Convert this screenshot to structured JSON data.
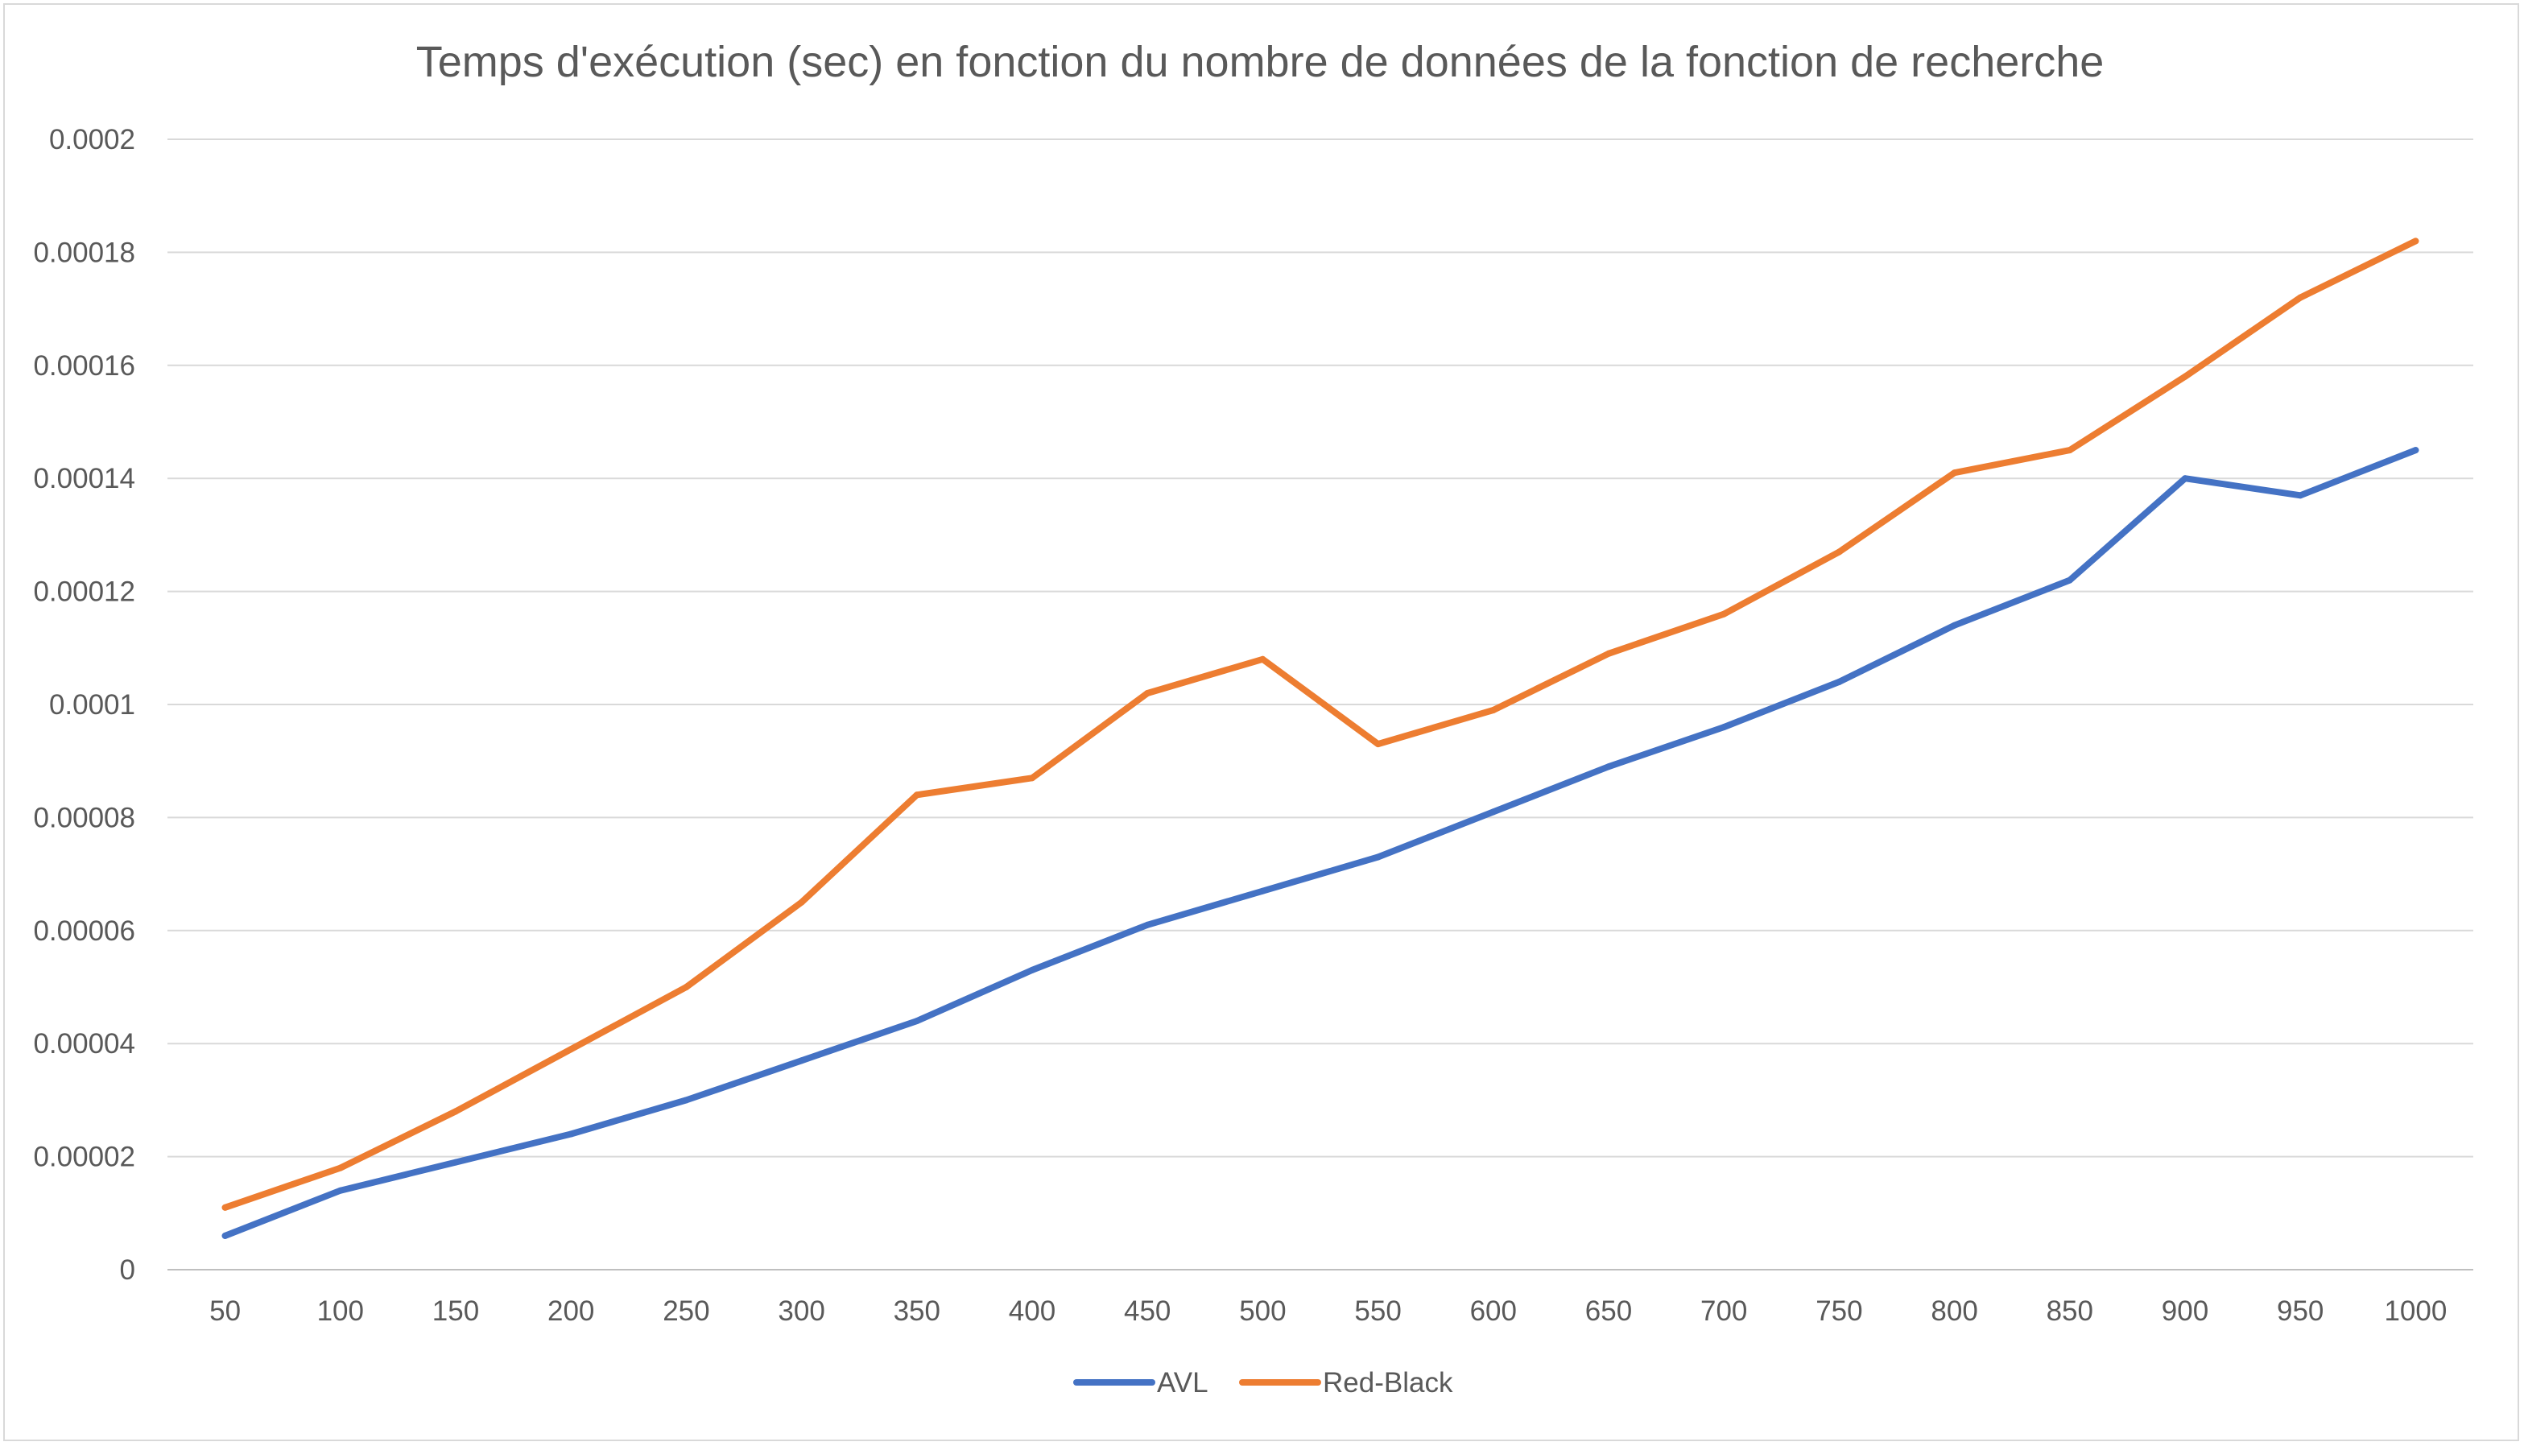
{
  "chart_data": {
    "type": "line",
    "title": "Temps d'exécution (sec) en fonction du nombre de données de la fonction de recherche",
    "xlabel": "",
    "ylabel": "",
    "categories": [
      "50",
      "100",
      "150",
      "200",
      "250",
      "300",
      "350",
      "400",
      "450",
      "500",
      "550",
      "600",
      "650",
      "700",
      "750",
      "800",
      "850",
      "900",
      "950",
      "1000"
    ],
    "y_ticks": [
      "0",
      "0.00002",
      "0.00004",
      "0.00006",
      "0.00008",
      "0.0001",
      "0.00012",
      "0.00014",
      "0.00016",
      "0.00018",
      "0.0002"
    ],
    "ylim": [
      0,
      0.0002
    ],
    "grid": true,
    "legend_position": "bottom",
    "series": [
      {
        "name": "AVL",
        "color": "#4472c4",
        "values": [
          6e-06,
          1.4e-05,
          1.9e-05,
          2.4e-05,
          3e-05,
          3.7e-05,
          4.4e-05,
          5.3e-05,
          6.1e-05,
          6.7e-05,
          7.3e-05,
          8.1e-05,
          8.9e-05,
          9.6e-05,
          0.000104,
          0.000114,
          0.000122,
          0.00014,
          0.000137,
          0.000145
        ]
      },
      {
        "name": "Red-Black",
        "color": "#ed7d31",
        "values": [
          1.1e-05,
          1.8e-05,
          2.8e-05,
          3.9e-05,
          5e-05,
          6.5e-05,
          8.4e-05,
          8.7e-05,
          0.000102,
          0.000108,
          9.3e-05,
          9.9e-05,
          0.000109,
          0.000116,
          0.000127,
          0.000141,
          0.000145,
          0.000158,
          0.000172,
          0.000182
        ]
      }
    ]
  }
}
